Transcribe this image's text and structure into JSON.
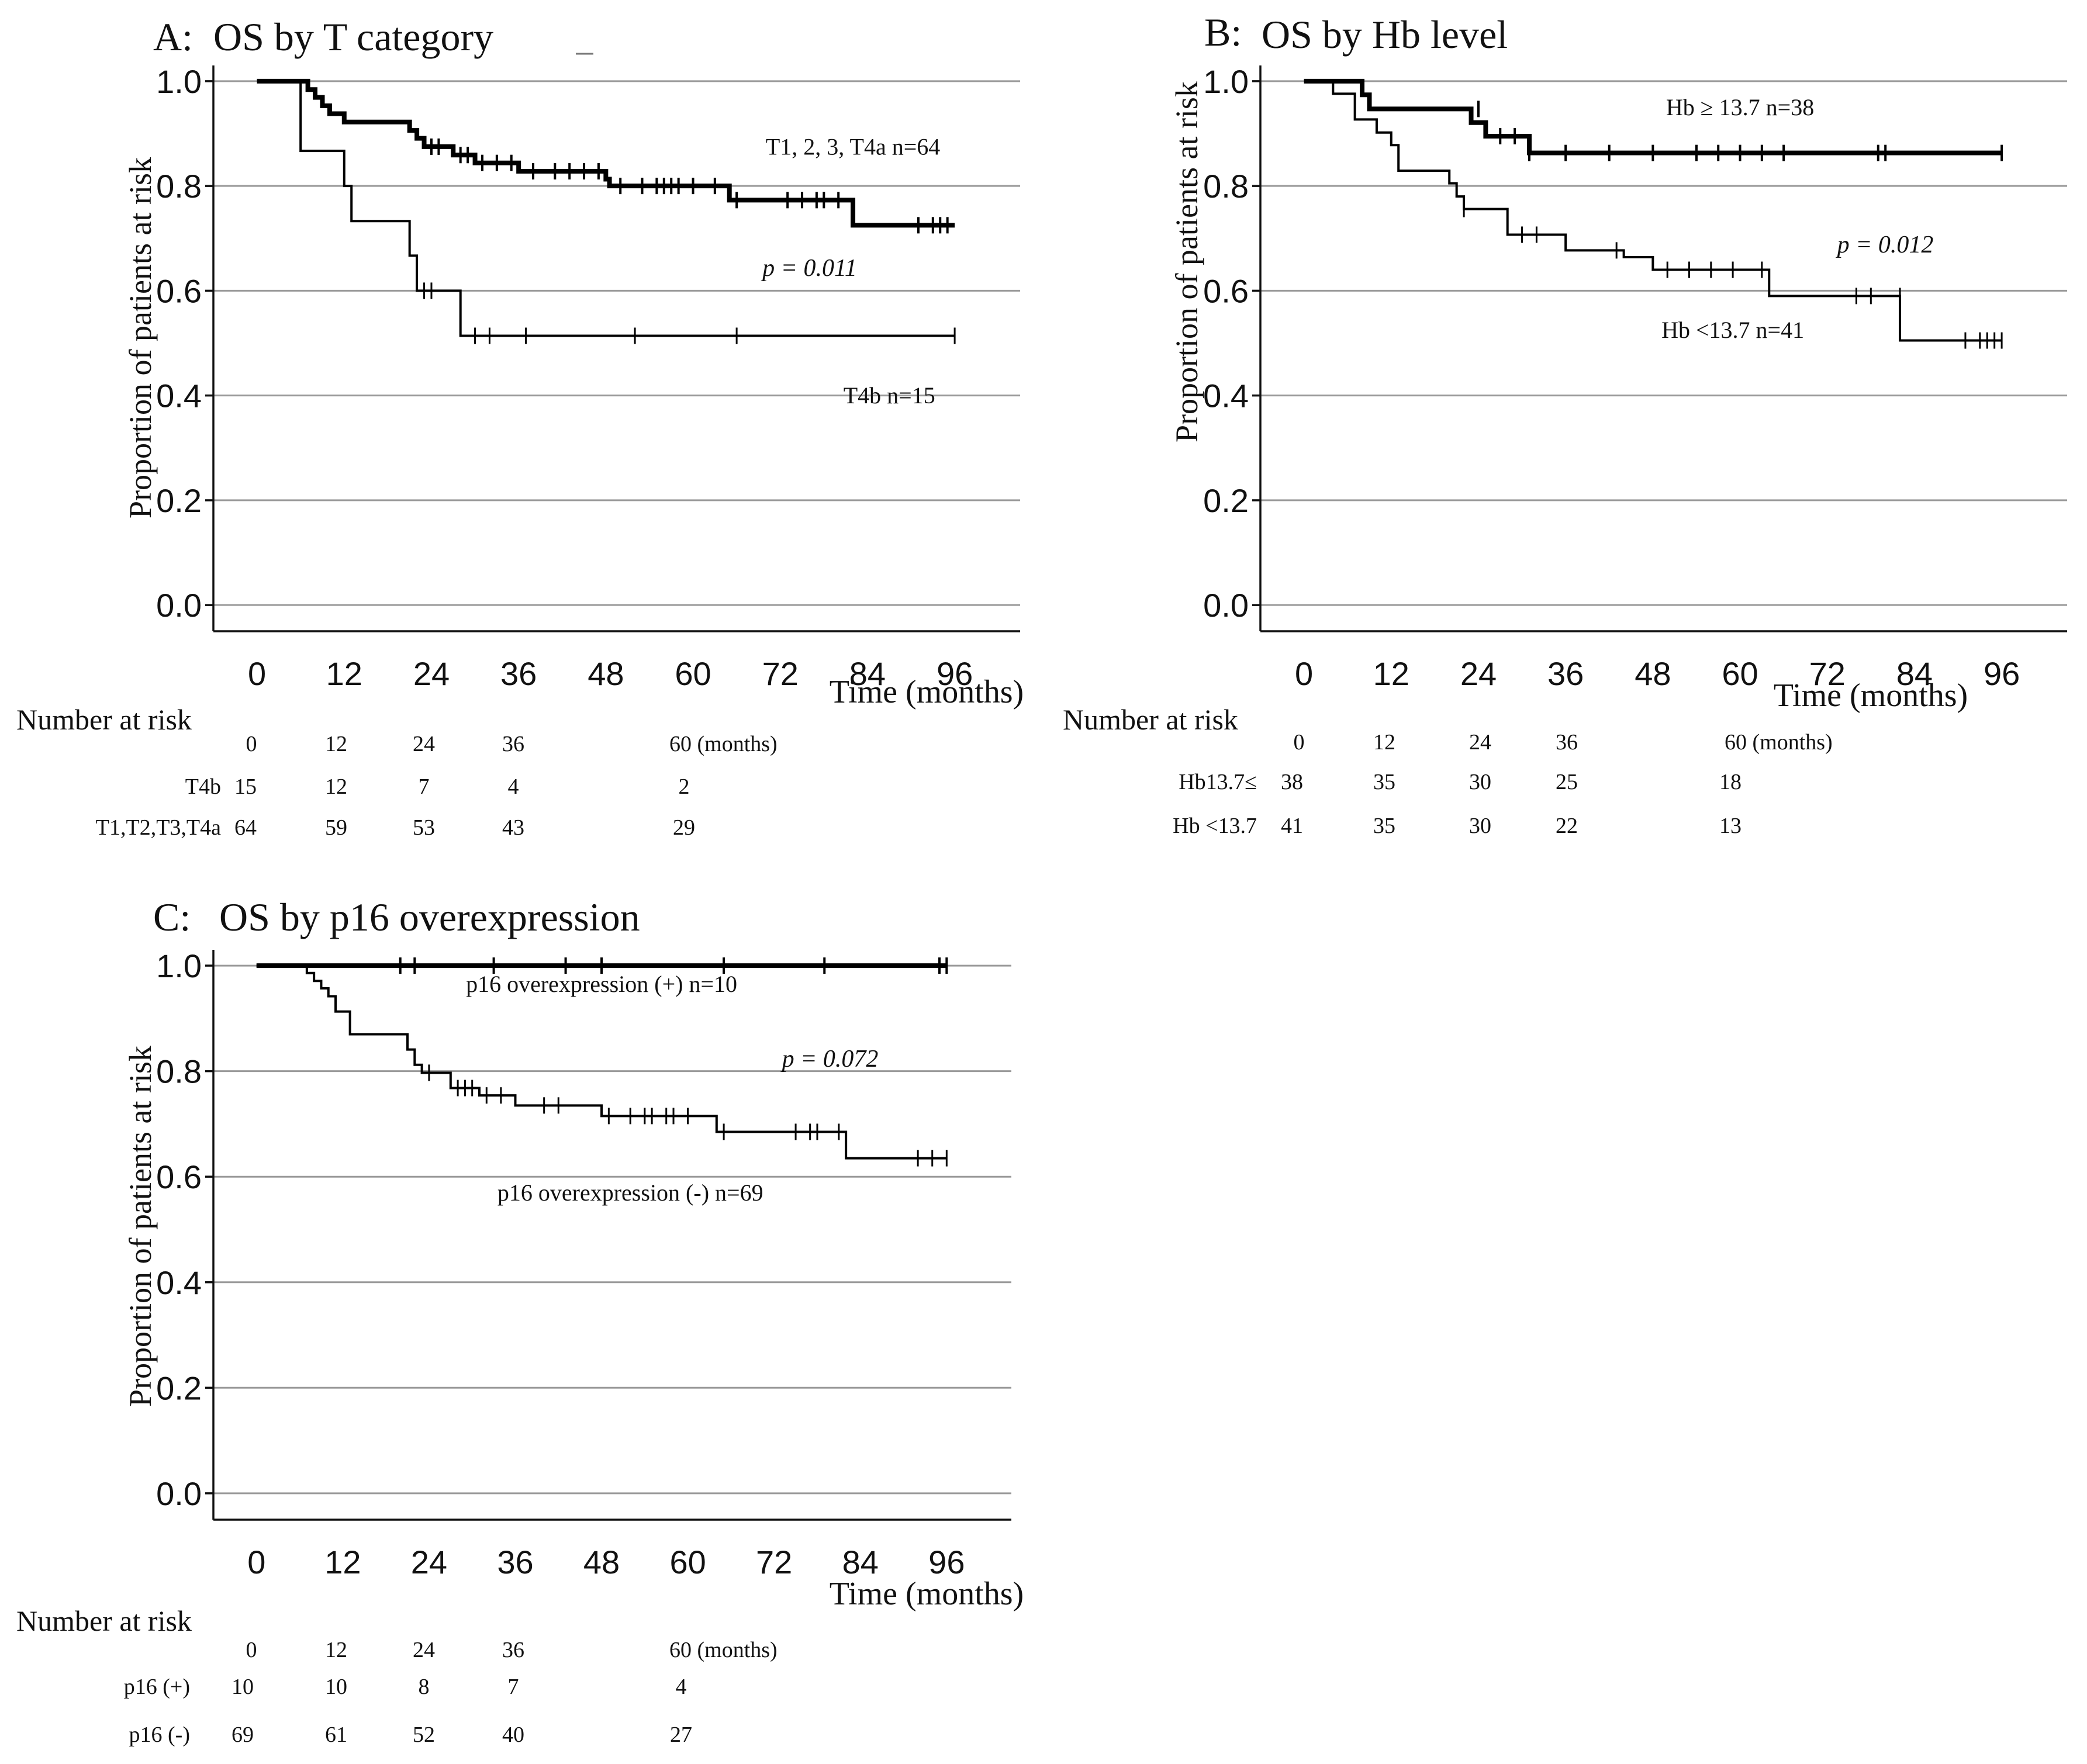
{
  "chart_data": [
    {
      "type": "line",
      "panel_letter": "A:",
      "title": "OS by T category",
      "xlabel": "Time (months)",
      "ylabel": "Proportion of patients at risk",
      "x_ticks": [
        0,
        12,
        24,
        36,
        48,
        60,
        72,
        84,
        96
      ],
      "y_ticks": [
        "0.0",
        "0.2",
        "0.4",
        "0.6",
        "0.8",
        "1.0"
      ],
      "xlim": [
        -6,
        105
      ],
      "ylim": [
        -0.05,
        1.03
      ],
      "grid": true,
      "p_value": "p = 0.011",
      "series": [
        {
          "name": "T1, 2, 3, T4a n=64",
          "label_at": [
            82,
            0.86
          ],
          "weight": "bold",
          "steps": [
            [
              0,
              1.0
            ],
            [
              7,
              0.984
            ],
            [
              8,
              0.969
            ],
            [
              9,
              0.953
            ],
            [
              10,
              0.938
            ],
            [
              12,
              0.922
            ],
            [
              21,
              0.906
            ],
            [
              22,
              0.891
            ],
            [
              23,
              0.875
            ],
            [
              27,
              0.859
            ],
            [
              30,
              0.844
            ],
            [
              36,
              0.828
            ],
            [
              48,
              0.813
            ],
            [
              48.5,
              0.8
            ],
            [
              65,
              0.773
            ],
            [
              82,
              0.725
            ],
            [
              96,
              0.725
            ]
          ],
          "censored": [
            [
              24,
              0.875
            ],
            [
              25,
              0.875
            ],
            [
              28,
              0.859
            ],
            [
              29,
              0.859
            ],
            [
              31,
              0.844
            ],
            [
              33,
              0.844
            ],
            [
              35,
              0.844
            ],
            [
              38,
              0.828
            ],
            [
              41,
              0.828
            ],
            [
              43,
              0.828
            ],
            [
              45,
              0.828
            ],
            [
              47,
              0.828
            ],
            [
              50,
              0.8
            ],
            [
              53,
              0.8
            ],
            [
              55,
              0.8
            ],
            [
              56,
              0.8
            ],
            [
              57,
              0.8
            ],
            [
              58,
              0.8
            ],
            [
              60,
              0.8
            ],
            [
              63,
              0.8
            ],
            [
              66,
              0.773
            ],
            [
              73,
              0.773
            ],
            [
              75,
              0.773
            ],
            [
              77,
              0.773
            ],
            [
              78,
              0.773
            ],
            [
              80,
              0.773
            ],
            [
              91,
              0.725
            ],
            [
              93,
              0.725
            ],
            [
              94,
              0.725
            ],
            [
              95,
              0.725
            ]
          ]
        },
        {
          "name": "T4b n=15",
          "label_at": [
            87,
            0.385
          ],
          "weight": "thin",
          "steps": [
            [
              0,
              1.0
            ],
            [
              6,
              0.867
            ],
            [
              12,
              0.8
            ],
            [
              13,
              0.733
            ],
            [
              21,
              0.667
            ],
            [
              22,
              0.6
            ],
            [
              28,
              0.514
            ],
            [
              96,
              0.514
            ]
          ],
          "censored": [
            [
              23,
              0.6
            ],
            [
              24,
              0.6
            ],
            [
              30,
              0.514
            ],
            [
              32,
              0.514
            ],
            [
              37,
              0.514
            ],
            [
              52,
              0.514
            ],
            [
              66,
              0.514
            ],
            [
              96,
              0.514
            ]
          ]
        }
      ],
      "risk_table": {
        "heading": "Number at risk",
        "times": [
          "0",
          "12",
          "24",
          "36",
          "60 (months)"
        ],
        "rows": [
          {
            "label": "T4b",
            "values": [
              "15",
              "12",
              "7",
              "4",
              "2"
            ]
          },
          {
            "label": "T1,T2,T3,T4a",
            "values": [
              "64",
              "59",
              "53",
              "43",
              "29"
            ]
          }
        ]
      }
    },
    {
      "type": "line",
      "panel_letter": "B:",
      "title": "OS by Hb level",
      "xlabel": "Time (months)",
      "ylabel": "Proportion of patients at risk",
      "x_ticks": [
        0,
        12,
        24,
        36,
        48,
        60,
        72,
        84,
        96
      ],
      "y_ticks": [
        "0.0",
        "0.2",
        "0.4",
        "0.6",
        "0.8",
        "1.0"
      ],
      "xlim": [
        -6,
        105
      ],
      "ylim": [
        -0.05,
        1.03
      ],
      "grid": true,
      "p_value": "p = 0.012",
      "series": [
        {
          "name": "Hb ≥ 13.7 n=38",
          "label_at": [
            60,
            0.935
          ],
          "weight": "bold",
          "steps": [
            [
              0,
              1.0
            ],
            [
              8,
              0.974
            ],
            [
              9,
              0.947
            ],
            [
              23,
              0.921
            ],
            [
              25,
              0.895
            ],
            [
              31,
              0.863
            ],
            [
              96,
              0.863
            ]
          ],
          "censored": [
            [
              24,
              0.947
            ],
            [
              27,
              0.895
            ],
            [
              29,
              0.895
            ],
            [
              31,
              0.863
            ],
            [
              36,
              0.863
            ],
            [
              42,
              0.863
            ],
            [
              48,
              0.863
            ],
            [
              54,
              0.863
            ],
            [
              57,
              0.863
            ],
            [
              60,
              0.863
            ],
            [
              63,
              0.863
            ],
            [
              66,
              0.863
            ],
            [
              79,
              0.863
            ],
            [
              80,
              0.863
            ],
            [
              96,
              0.863
            ]
          ]
        },
        {
          "name": "Hb <13.7 n=41",
          "label_at": [
            59,
            0.51
          ],
          "weight": "thin",
          "steps": [
            [
              0,
              1.0
            ],
            [
              4,
              0.976
            ],
            [
              7,
              0.927
            ],
            [
              10,
              0.902
            ],
            [
              12,
              0.878
            ],
            [
              13,
              0.829
            ],
            [
              20,
              0.805
            ],
            [
              21,
              0.78
            ],
            [
              22,
              0.756
            ],
            [
              28,
              0.707
            ],
            [
              36,
              0.677
            ],
            [
              44,
              0.664
            ],
            [
              48,
              0.64
            ],
            [
              64,
              0.59
            ],
            [
              82,
              0.505
            ],
            [
              96,
              0.505
            ]
          ],
          "censored": [
            [
              22,
              0.756
            ],
            [
              30,
              0.707
            ],
            [
              32,
              0.707
            ],
            [
              43,
              0.677
            ],
            [
              50,
              0.64
            ],
            [
              53,
              0.64
            ],
            [
              56,
              0.64
            ],
            [
              59,
              0.64
            ],
            [
              63,
              0.64
            ],
            [
              76,
              0.59
            ],
            [
              78,
              0.59
            ],
            [
              82,
              0.59
            ],
            [
              91,
              0.505
            ],
            [
              93,
              0.505
            ],
            [
              94,
              0.505
            ],
            [
              95,
              0.505
            ],
            [
              96,
              0.505
            ]
          ]
        }
      ],
      "risk_table": {
        "heading": "Number at risk",
        "times": [
          "0",
          "12",
          "24",
          "36",
          "60 (months)"
        ],
        "rows": [
          {
            "label": "Hb13.7≤",
            "values": [
              "38",
              "35",
              "30",
              "25",
              "18"
            ]
          },
          {
            "label": "Hb <13.7",
            "values": [
              "41",
              "35",
              "30",
              "22",
              "13"
            ]
          }
        ]
      }
    },
    {
      "type": "line",
      "panel_letter": "C:",
      "title": "OS by p16 overexpression",
      "xlabel": "Time (months)",
      "ylabel": "Proportion of patients at risk",
      "x_ticks": [
        0,
        12,
        24,
        36,
        48,
        60,
        72,
        84,
        96
      ],
      "y_ticks": [
        "0.0",
        "0.2",
        "0.4",
        "0.6",
        "0.8",
        "1.0"
      ],
      "xlim": [
        -6,
        105
      ],
      "ylim": [
        -0.05,
        1.03
      ],
      "grid": true,
      "p_value": "p = 0.072",
      "series": [
        {
          "name": "p16 overexpression (+) n=10",
          "label_at": [
            48,
            0.95
          ],
          "weight": "bold",
          "steps": [
            [
              0,
              1.0
            ],
            [
              96,
              1.0
            ]
          ],
          "censored": [
            [
              20,
              1.0
            ],
            [
              22,
              1.0
            ],
            [
              33,
              1.0
            ],
            [
              43,
              1.0
            ],
            [
              48,
              1.0
            ],
            [
              65,
              1.0
            ],
            [
              79,
              1.0
            ],
            [
              95,
              1.0
            ],
            [
              96,
              1.0
            ]
          ]
        },
        {
          "name": "p16 overexpression (-) n=69",
          "label_at": [
            52,
            0.555
          ],
          "weight": "thin",
          "steps": [
            [
              0,
              1.0
            ],
            [
              7,
              0.986
            ],
            [
              8,
              0.971
            ],
            [
              9,
              0.957
            ],
            [
              10,
              0.942
            ],
            [
              11,
              0.913
            ],
            [
              13,
              0.87
            ],
            [
              21,
              0.841
            ],
            [
              22,
              0.812
            ],
            [
              23,
              0.797
            ],
            [
              27,
              0.768
            ],
            [
              31,
              0.754
            ],
            [
              36,
              0.735
            ],
            [
              48,
              0.715
            ],
            [
              64,
              0.685
            ],
            [
              82,
              0.635
            ],
            [
              96,
              0.635
            ]
          ],
          "censored": [
            [
              24,
              0.797
            ],
            [
              28,
              0.768
            ],
            [
              29,
              0.768
            ],
            [
              30,
              0.768
            ],
            [
              32,
              0.754
            ],
            [
              34,
              0.754
            ],
            [
              40,
              0.735
            ],
            [
              42,
              0.735
            ],
            [
              49,
              0.715
            ],
            [
              52,
              0.715
            ],
            [
              54,
              0.715
            ],
            [
              55,
              0.715
            ],
            [
              57,
              0.715
            ],
            [
              58,
              0.715
            ],
            [
              60,
              0.715
            ],
            [
              65,
              0.685
            ],
            [
              75,
              0.685
            ],
            [
              77,
              0.685
            ],
            [
              78,
              0.685
            ],
            [
              81,
              0.685
            ],
            [
              92,
              0.635
            ],
            [
              94,
              0.635
            ],
            [
              96,
              0.635
            ]
          ]
        }
      ],
      "risk_table": {
        "heading": "Number at risk",
        "times": [
          "0",
          "12",
          "24",
          "36",
          "60 (months)"
        ],
        "rows": [
          {
            "label": "p16 (+)",
            "values": [
              "10",
              "10",
              "8",
              "7",
              "4"
            ]
          },
          {
            "label": "p16 (-)",
            "values": [
              "69",
              "61",
              "52",
              "40",
              "27"
            ]
          }
        ]
      }
    }
  ]
}
